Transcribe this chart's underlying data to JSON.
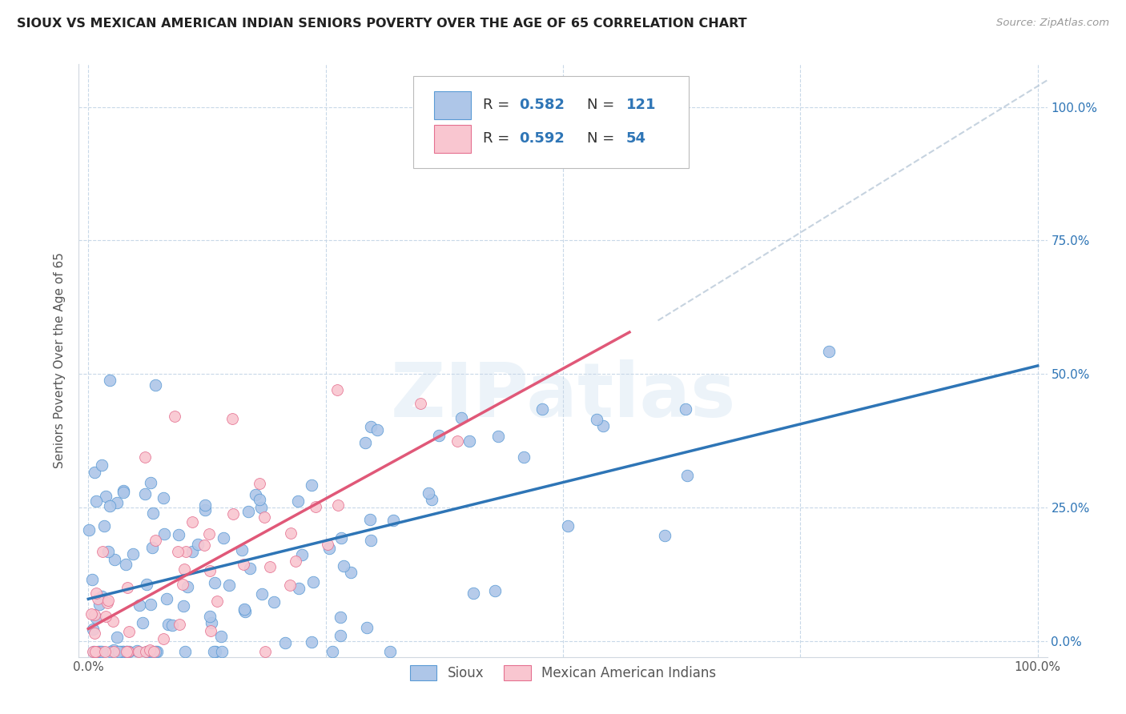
{
  "title": "SIOUX VS MEXICAN AMERICAN INDIAN SENIORS POVERTY OVER THE AGE OF 65 CORRELATION CHART",
  "source": "Source: ZipAtlas.com",
  "ylabel": "Seniors Poverty Over the Age of 65",
  "sioux_R": 0.582,
  "sioux_N": 121,
  "mexican_R": 0.592,
  "mexican_N": 54,
  "sioux_color": "#aec6e8",
  "sioux_edge_color": "#5b9bd5",
  "sioux_line_color": "#2e75b6",
  "mexican_color": "#f9c6d0",
  "mexican_edge_color": "#e57090",
  "mexican_line_color": "#e05878",
  "watermark": "ZIPatlas",
  "background_color": "#ffffff",
  "grid_color": "#c8d8e8",
  "right_label_color": "#2e75b6",
  "xtick_labels": [
    "0.0%",
    "",
    "",
    "",
    "100.0%"
  ],
  "ytick_labels": [
    "",
    "",
    "",
    "",
    ""
  ],
  "right_ytick_labels": [
    "0.0%",
    "25.0%",
    "50.0%",
    "75.0%",
    "100.0%"
  ],
  "bottom_legend_labels": [
    "Sioux",
    "Mexican American Indians"
  ]
}
